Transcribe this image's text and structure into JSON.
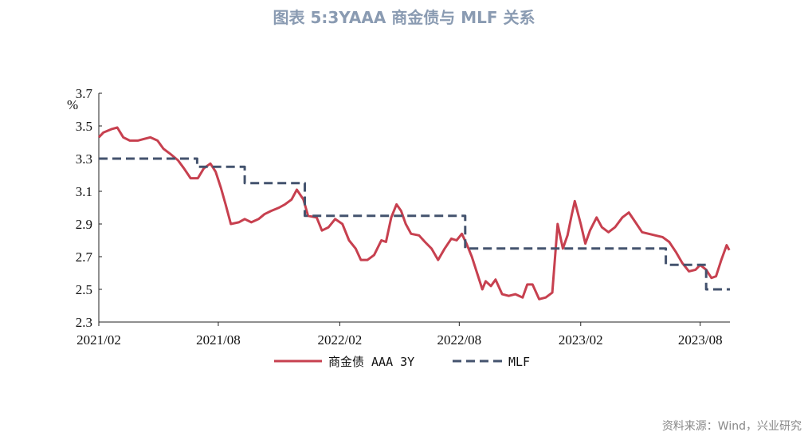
{
  "title": "图表 5:3YAAA 商金债与 MLF 关系",
  "source": "资料来源：Wind，兴业研究",
  "chart_data": {
    "type": "line",
    "title": "图表 5:3YAAA 商金债与 MLF 关系",
    "ylabel": "%",
    "ylim": [
      2.3,
      3.7
    ],
    "yticks": [
      "2.3",
      "2.5",
      "2.7",
      "2.9",
      "3.1",
      "3.3",
      "3.5",
      "3.7"
    ],
    "xlim": [
      "2021-02-01",
      "2023-09-15"
    ],
    "xticks": [
      "2021/02",
      "2021/08",
      "2022/02",
      "2022/08",
      "2023/02",
      "2023/08"
    ],
    "legend_position": "bottom",
    "grid": false,
    "series": [
      {
        "name": "商金债 AAA 3Y",
        "color": "#c7404f",
        "points": [
          [
            "2021-02-01",
            3.43
          ],
          [
            "2021-02-08",
            3.46
          ],
          [
            "2021-02-20",
            3.48
          ],
          [
            "2021-03-01",
            3.49
          ],
          [
            "2021-03-10",
            3.43
          ],
          [
            "2021-03-20",
            3.41
          ],
          [
            "2021-04-01",
            3.41
          ],
          [
            "2021-04-10",
            3.42
          ],
          [
            "2021-04-20",
            3.43
          ],
          [
            "2021-05-01",
            3.41
          ],
          [
            "2021-05-10",
            3.36
          ],
          [
            "2021-05-20",
            3.33
          ],
          [
            "2021-06-01",
            3.29
          ],
          [
            "2021-06-10",
            3.24
          ],
          [
            "2021-06-20",
            3.18
          ],
          [
            "2021-07-01",
            3.18
          ],
          [
            "2021-07-10",
            3.24
          ],
          [
            "2021-07-20",
            3.27
          ],
          [
            "2021-07-28",
            3.22
          ],
          [
            "2021-08-05",
            3.12
          ],
          [
            "2021-08-12",
            3.02
          ],
          [
            "2021-08-20",
            2.9
          ],
          [
            "2021-09-01",
            2.91
          ],
          [
            "2021-09-10",
            2.93
          ],
          [
            "2021-09-20",
            2.91
          ],
          [
            "2021-10-01",
            2.93
          ],
          [
            "2021-10-10",
            2.96
          ],
          [
            "2021-10-20",
            2.98
          ],
          [
            "2021-11-01",
            3.0
          ],
          [
            "2021-11-10",
            3.02
          ],
          [
            "2021-11-20",
            3.05
          ],
          [
            "2021-11-28",
            3.11
          ],
          [
            "2021-12-08",
            3.05
          ],
          [
            "2021-12-15",
            2.95
          ],
          [
            "2021-12-28",
            2.94
          ],
          [
            "2022-01-05",
            2.86
          ],
          [
            "2022-01-15",
            2.88
          ],
          [
            "2022-01-25",
            2.93
          ],
          [
            "2022-02-05",
            2.9
          ],
          [
            "2022-02-15",
            2.8
          ],
          [
            "2022-02-25",
            2.75
          ],
          [
            "2022-03-05",
            2.68
          ],
          [
            "2022-03-15",
            2.68
          ],
          [
            "2022-03-25",
            2.71
          ],
          [
            "2022-04-05",
            2.8
          ],
          [
            "2022-04-12",
            2.79
          ],
          [
            "2022-04-20",
            2.94
          ],
          [
            "2022-04-28",
            3.02
          ],
          [
            "2022-05-05",
            2.98
          ],
          [
            "2022-05-12",
            2.9
          ],
          [
            "2022-05-20",
            2.84
          ],
          [
            "2022-06-01",
            2.83
          ],
          [
            "2022-06-10",
            2.79
          ],
          [
            "2022-06-20",
            2.75
          ],
          [
            "2022-06-30",
            2.68
          ],
          [
            "2022-07-10",
            2.75
          ],
          [
            "2022-07-20",
            2.81
          ],
          [
            "2022-07-28",
            2.8
          ],
          [
            "2022-08-05",
            2.84
          ],
          [
            "2022-08-12",
            2.78
          ],
          [
            "2022-08-20",
            2.7
          ],
          [
            "2022-08-28",
            2.6
          ],
          [
            "2022-09-05",
            2.5
          ],
          [
            "2022-09-10",
            2.55
          ],
          [
            "2022-09-18",
            2.52
          ],
          [
            "2022-09-25",
            2.56
          ],
          [
            "2022-10-05",
            2.47
          ],
          [
            "2022-10-15",
            2.46
          ],
          [
            "2022-10-25",
            2.47
          ],
          [
            "2022-11-05",
            2.45
          ],
          [
            "2022-11-12",
            2.53
          ],
          [
            "2022-11-20",
            2.53
          ],
          [
            "2022-11-30",
            2.44
          ],
          [
            "2022-12-10",
            2.45
          ],
          [
            "2022-12-20",
            2.48
          ],
          [
            "2022-12-28",
            2.9
          ],
          [
            "2023-01-05",
            2.75
          ],
          [
            "2023-01-12",
            2.83
          ],
          [
            "2023-01-18",
            2.95
          ],
          [
            "2023-01-23",
            3.04
          ],
          [
            "2023-02-01",
            2.9
          ],
          [
            "2023-02-08",
            2.78
          ],
          [
            "2023-02-15",
            2.86
          ],
          [
            "2023-02-25",
            2.94
          ],
          [
            "2023-03-05",
            2.88
          ],
          [
            "2023-03-15",
            2.85
          ],
          [
            "2023-03-25",
            2.88
          ],
          [
            "2023-04-05",
            2.94
          ],
          [
            "2023-04-15",
            2.97
          ],
          [
            "2023-04-25",
            2.91
          ],
          [
            "2023-05-05",
            2.85
          ],
          [
            "2023-05-15",
            2.84
          ],
          [
            "2023-05-25",
            2.83
          ],
          [
            "2023-06-05",
            2.82
          ],
          [
            "2023-06-15",
            2.79
          ],
          [
            "2023-06-25",
            2.73
          ],
          [
            "2023-07-05",
            2.66
          ],
          [
            "2023-07-15",
            2.61
          ],
          [
            "2023-07-25",
            2.62
          ],
          [
            "2023-08-01",
            2.65
          ],
          [
            "2023-08-10",
            2.62
          ],
          [
            "2023-08-18",
            2.57
          ],
          [
            "2023-08-25",
            2.58
          ],
          [
            "2023-09-02",
            2.68
          ],
          [
            "2023-09-10",
            2.77
          ],
          [
            "2023-09-14",
            2.74
          ]
        ]
      },
      {
        "name": "MLF",
        "color": "#44536e",
        "dashed": true,
        "points": [
          [
            "2021-02-01",
            3.3
          ],
          [
            "2021-06-30",
            3.3
          ],
          [
            "2021-06-30",
            3.25
          ],
          [
            "2021-09-10",
            3.25
          ],
          [
            "2021-09-10",
            3.15
          ],
          [
            "2021-12-10",
            3.15
          ],
          [
            "2021-12-10",
            2.95
          ],
          [
            "2022-08-10",
            2.95
          ],
          [
            "2022-08-10",
            2.75
          ],
          [
            "2023-06-10",
            2.75
          ],
          [
            "2023-06-10",
            2.65
          ],
          [
            "2023-08-10",
            2.65
          ],
          [
            "2023-08-10",
            2.5
          ],
          [
            "2023-09-15",
            2.5
          ]
        ]
      }
    ]
  }
}
